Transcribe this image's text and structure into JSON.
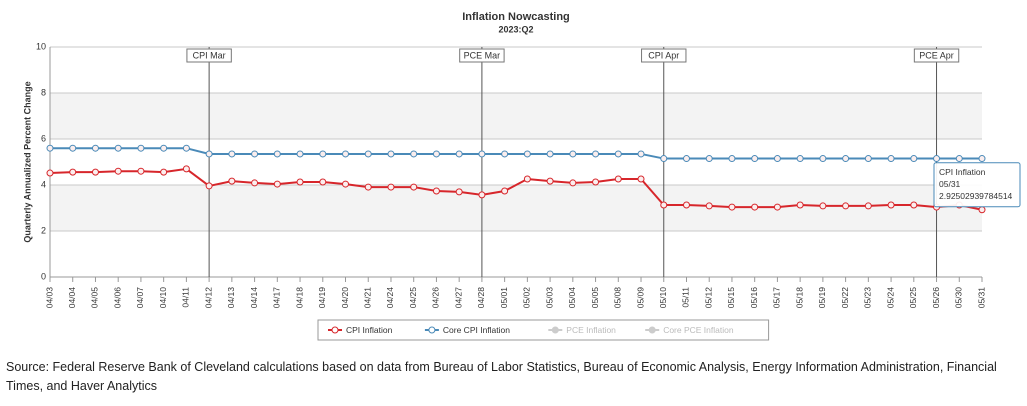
{
  "chart_data": {
    "type": "line",
    "title": "Inflation Nowcasting",
    "subtitle": "2023:Q2",
    "y_label": "Quarterly Annualized Percent Change",
    "categories": [
      "04/03",
      "04/04",
      "04/05",
      "04/06",
      "04/07",
      "04/10",
      "04/11",
      "04/12",
      "04/13",
      "04/14",
      "04/17",
      "04/18",
      "04/19",
      "04/20",
      "04/21",
      "04/24",
      "04/25",
      "04/26",
      "04/27",
      "04/28",
      "05/01",
      "05/02",
      "05/03",
      "05/04",
      "05/05",
      "05/08",
      "05/09",
      "05/10",
      "05/11",
      "05/12",
      "05/15",
      "05/16",
      "05/17",
      "05/18",
      "05/19",
      "05/22",
      "05/23",
      "05/24",
      "05/25",
      "05/26",
      "05/30",
      "05/31"
    ],
    "series": [
      {
        "name": "CPI Inflation",
        "color": "#d7262b",
        "visible": true,
        "values": [
          4.52,
          4.56,
          4.56,
          4.6,
          4.6,
          4.56,
          4.7,
          3.96,
          4.17,
          4.09,
          4.04,
          4.13,
          4.13,
          4.04,
          3.91,
          3.91,
          3.91,
          3.74,
          3.7,
          3.57,
          3.74,
          4.26,
          4.17,
          4.09,
          4.13,
          4.26,
          4.26,
          3.13,
          3.13,
          3.09,
          3.04,
          3.04,
          3.04,
          3.13,
          3.09,
          3.09,
          3.09,
          3.13,
          3.13,
          3.04,
          3.13,
          2.92502939784514
        ]
      },
      {
        "name": "Core CPI Inflation",
        "color": "#4a8ab8",
        "visible": true,
        "values": [
          5.6,
          5.6,
          5.6,
          5.6,
          5.6,
          5.6,
          5.6,
          5.35,
          5.35,
          5.35,
          5.35,
          5.35,
          5.35,
          5.35,
          5.35,
          5.35,
          5.35,
          5.35,
          5.35,
          5.35,
          5.35,
          5.35,
          5.35,
          5.35,
          5.35,
          5.35,
          5.35,
          5.15,
          5.15,
          5.15,
          5.15,
          5.15,
          5.15,
          5.15,
          5.15,
          5.15,
          5.15,
          5.15,
          5.15,
          5.15,
          5.15,
          5.15
        ]
      },
      {
        "name": "PCE Inflation",
        "color": "#cccccc",
        "visible": false
      },
      {
        "name": "Core PCE Inflation",
        "color": "#cccccc",
        "visible": false
      }
    ],
    "plot_lines": [
      {
        "label": "CPI Mar",
        "category": "04/12"
      },
      {
        "label": "PCE Mar",
        "category": "04/28"
      },
      {
        "label": "CPI Apr",
        "category": "05/10"
      },
      {
        "label": "PCE Apr",
        "category": "05/26"
      }
    ],
    "ylim": [
      0,
      10
    ],
    "yticks": [
      0,
      2,
      4,
      6,
      8,
      10
    ],
    "tooltip": {
      "series": 0,
      "index": 41
    },
    "source": "Source: Federal Reserve Bank of Cleveland calculations based on data from Bureau of Labor Statistics, Bureau of Economic Analysis, Energy Information Administration, Financial Times, and Haver Analytics"
  }
}
